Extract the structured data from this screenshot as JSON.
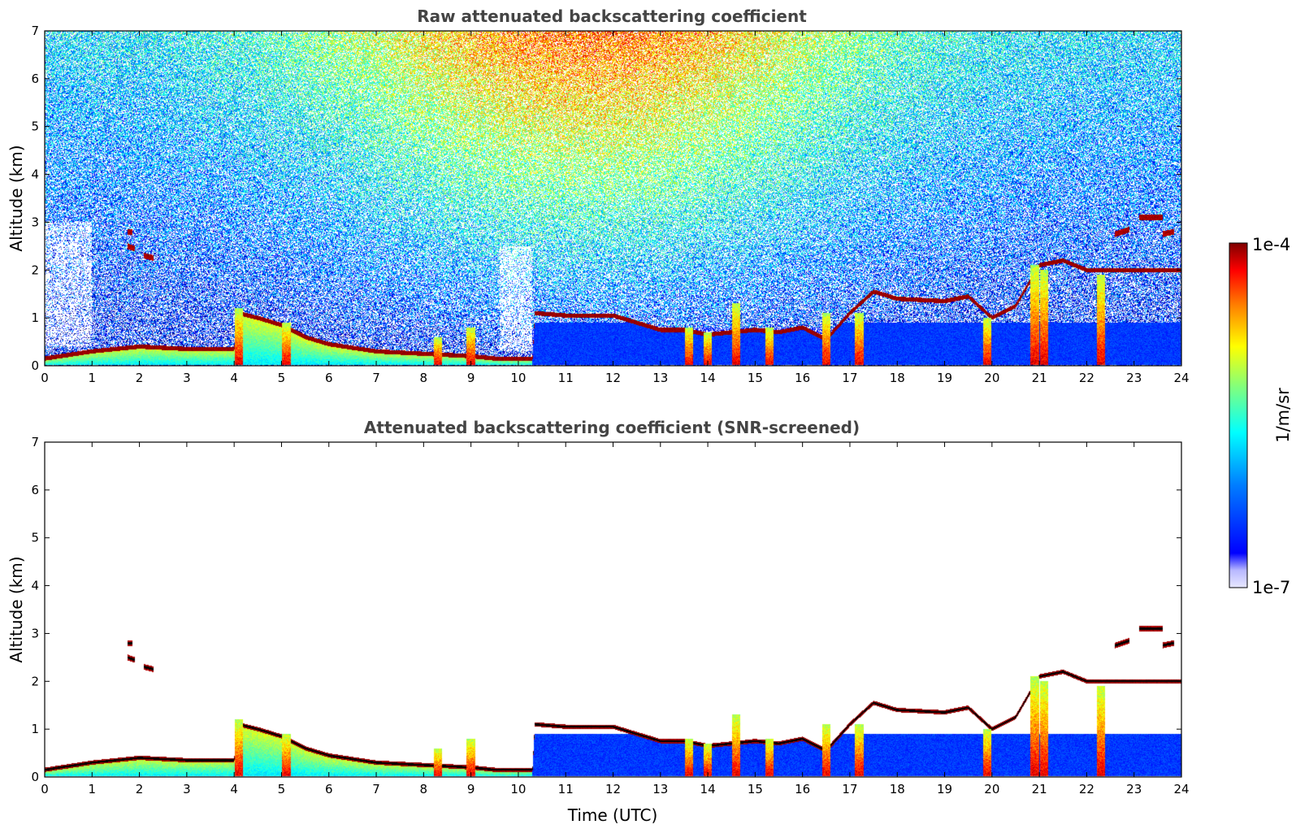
{
  "colors": {
    "jet": [
      "#00007f",
      "#0000ff",
      "#007fff",
      "#00ffff",
      "#7fff7f",
      "#ffff00",
      "#ff7f00",
      "#ff0000",
      "#7f0000"
    ],
    "colorbar_low": [
      "#e8e8ff",
      "#b8b8ff",
      "#8080ff"
    ],
    "feature_core": "#000000"
  },
  "chart_data": [
    {
      "type": "heatmap",
      "title": "Raw attenuated backscattering coefficient",
      "xlabel": "",
      "ylabel": "Altitude (km)",
      "xlim": [
        0,
        24
      ],
      "ylim": [
        0,
        7
      ],
      "xticks": [
        "0",
        "1",
        "2",
        "3",
        "4",
        "5",
        "6",
        "7",
        "8",
        "9",
        "10",
        "11",
        "12",
        "13",
        "14",
        "15",
        "16",
        "17",
        "18",
        "19",
        "20",
        "21",
        "22",
        "23",
        "24"
      ],
      "yticks": [
        "0",
        "1",
        "2",
        "3",
        "4",
        "5",
        "6",
        "7"
      ],
      "noise_field": "present",
      "layer_height_km": {
        "x": [
          0,
          1,
          2,
          3,
          4,
          4.1,
          4.5,
          5,
          5.5,
          6,
          7,
          8,
          9,
          9.5,
          10,
          10.3,
          10.35,
          11,
          12,
          13,
          13.5,
          14,
          14.5,
          15,
          15.5,
          16,
          16.5,
          17,
          17.5,
          18,
          19,
          19.5,
          20,
          20.5,
          21,
          21.5,
          22,
          22.3
        ],
        "y": [
          0.15,
          0.3,
          0.4,
          0.35,
          0.35,
          1.1,
          1.0,
          0.85,
          0.6,
          0.45,
          0.3,
          0.25,
          0.2,
          0.15,
          0.15,
          0.15,
          1.1,
          1.05,
          1.05,
          0.75,
          0.75,
          0.65,
          0.7,
          0.75,
          0.7,
          0.8,
          0.55,
          1.1,
          1.55,
          1.4,
          1.35,
          1.45,
          1.0,
          1.25,
          2.1,
          2.2,
          2.0,
          2.0
        ]
      },
      "elevated_fragments_km": [
        {
          "x": [
            1.75,
            1.85
          ],
          "y": [
            2.8,
            2.8
          ]
        },
        {
          "x": [
            1.75,
            1.9
          ],
          "y": [
            2.5,
            2.45
          ]
        },
        {
          "x": [
            2.1,
            2.3
          ],
          "y": [
            2.3,
            2.25
          ]
        },
        {
          "x": [
            22.6,
            22.9
          ],
          "y": [
            2.75,
            2.85
          ]
        },
        {
          "x": [
            23.1,
            23.6
          ],
          "y": [
            3.1,
            3.1
          ]
        },
        {
          "x": [
            23.6,
            23.85
          ],
          "y": [
            2.75,
            2.8
          ]
        }
      ],
      "plumes": [
        {
          "x": 4.1,
          "top_km": 1.2
        },
        {
          "x": 5.1,
          "top_km": 0.9
        },
        {
          "x": 8.3,
          "top_km": 0.6
        },
        {
          "x": 9.0,
          "top_km": 0.8
        },
        {
          "x": 13.6,
          "top_km": 0.8
        },
        {
          "x": 14.0,
          "top_km": 0.7
        },
        {
          "x": 14.6,
          "top_km": 1.3
        },
        {
          "x": 15.3,
          "top_km": 0.8
        },
        {
          "x": 16.5,
          "top_km": 1.1
        },
        {
          "x": 17.2,
          "top_km": 1.1
        },
        {
          "x": 19.9,
          "top_km": 1.0
        },
        {
          "x": 20.9,
          "top_km": 2.1
        },
        {
          "x": 21.1,
          "top_km": 2.0
        },
        {
          "x": 22.3,
          "top_km": 1.9
        }
      ]
    },
    {
      "type": "heatmap",
      "title": "Attenuated backscattering coefficient (SNR-screened)",
      "xlabel": "Time (UTC)",
      "ylabel": "Altitude (km)",
      "xlim": [
        0,
        24
      ],
      "ylim": [
        0,
        7
      ],
      "xticks": [
        "0",
        "1",
        "2",
        "3",
        "4",
        "5",
        "6",
        "7",
        "8",
        "9",
        "10",
        "11",
        "12",
        "13",
        "14",
        "15",
        "16",
        "17",
        "18",
        "19",
        "20",
        "21",
        "22",
        "23",
        "24"
      ],
      "yticks": [
        "0",
        "1",
        "2",
        "3",
        "4",
        "5",
        "6",
        "7"
      ],
      "noise_field": "screened",
      "layer_height_km": {
        "x": [
          0,
          1,
          2,
          3,
          4,
          4.1,
          4.5,
          5,
          5.5,
          6,
          7,
          8,
          9,
          9.5,
          10,
          10.3,
          10.35,
          11,
          12,
          13,
          13.5,
          14,
          14.5,
          15,
          15.5,
          16,
          16.5,
          17,
          17.5,
          18,
          19,
          19.5,
          20,
          20.5,
          21,
          21.5,
          22,
          22.3
        ],
        "y": [
          0.15,
          0.3,
          0.4,
          0.35,
          0.35,
          1.1,
          1.0,
          0.85,
          0.6,
          0.45,
          0.3,
          0.25,
          0.2,
          0.15,
          0.15,
          0.15,
          1.1,
          1.05,
          1.05,
          0.75,
          0.75,
          0.65,
          0.7,
          0.75,
          0.7,
          0.8,
          0.55,
          1.1,
          1.55,
          1.4,
          1.35,
          1.45,
          1.0,
          1.25,
          2.1,
          2.2,
          2.0,
          2.0
        ]
      },
      "elevated_fragments_km": [
        {
          "x": [
            1.75,
            1.85
          ],
          "y": [
            2.8,
            2.8
          ]
        },
        {
          "x": [
            1.75,
            1.9
          ],
          "y": [
            2.5,
            2.45
          ]
        },
        {
          "x": [
            2.1,
            2.3
          ],
          "y": [
            2.3,
            2.25
          ]
        },
        {
          "x": [
            22.6,
            22.9
          ],
          "y": [
            2.75,
            2.85
          ]
        },
        {
          "x": [
            23.1,
            23.6
          ],
          "y": [
            3.1,
            3.1
          ]
        },
        {
          "x": [
            23.6,
            23.85
          ],
          "y": [
            2.75,
            2.8
          ]
        }
      ],
      "plumes": [
        {
          "x": 4.1,
          "top_km": 1.2
        },
        {
          "x": 5.1,
          "top_km": 0.9
        },
        {
          "x": 8.3,
          "top_km": 0.6
        },
        {
          "x": 9.0,
          "top_km": 0.8
        },
        {
          "x": 13.6,
          "top_km": 0.8
        },
        {
          "x": 14.0,
          "top_km": 0.7
        },
        {
          "x": 14.6,
          "top_km": 1.3
        },
        {
          "x": 15.3,
          "top_km": 0.8
        },
        {
          "x": 16.5,
          "top_km": 1.1
        },
        {
          "x": 17.2,
          "top_km": 1.1
        },
        {
          "x": 19.9,
          "top_km": 1.0
        },
        {
          "x": 20.9,
          "top_km": 2.1
        },
        {
          "x": 21.1,
          "top_km": 2.0
        },
        {
          "x": 22.3,
          "top_km": 1.9
        }
      ]
    }
  ],
  "colorbar": {
    "max_label": "1e-4",
    "min_label": "1e-7",
    "unit_label": "1/m/sr"
  }
}
